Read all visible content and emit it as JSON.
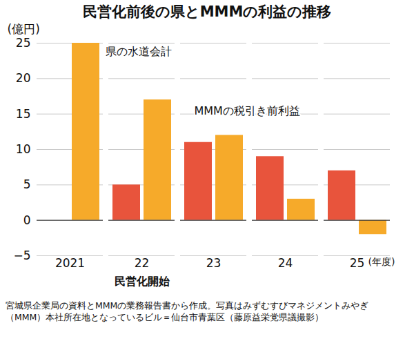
{
  "chart_data": {
    "type": "bar",
    "title": "民営化前後の県とMMMの利益の推移",
    "ylabel": "(億円)",
    "xlabel": "(年度)",
    "categories": [
      "2021",
      "22",
      "23",
      "24",
      "25"
    ],
    "series": [
      {
        "name": "MMMの税引き前利益",
        "color": "#e8543c",
        "values": [
          null,
          5,
          11,
          9,
          7
        ]
      },
      {
        "name": "県の水道会計",
        "color": "#f6aa2a",
        "values": [
          25,
          17,
          12,
          3,
          -2
        ]
      }
    ],
    "ylim": [
      -5,
      25
    ],
    "yticks": [
      -5,
      0,
      5,
      10,
      15,
      20,
      25
    ],
    "grid": true,
    "annotations": [
      {
        "text": "民営化開始",
        "category": "22"
      }
    ],
    "caption": "宮城県企業局の資料とMMMの業務報告書から作成。写真はみずむすびマネジメントみやぎ（MMM）本社所在地となっているビル＝仙台市青葉区（藤原益栄党県議撮影）"
  }
}
